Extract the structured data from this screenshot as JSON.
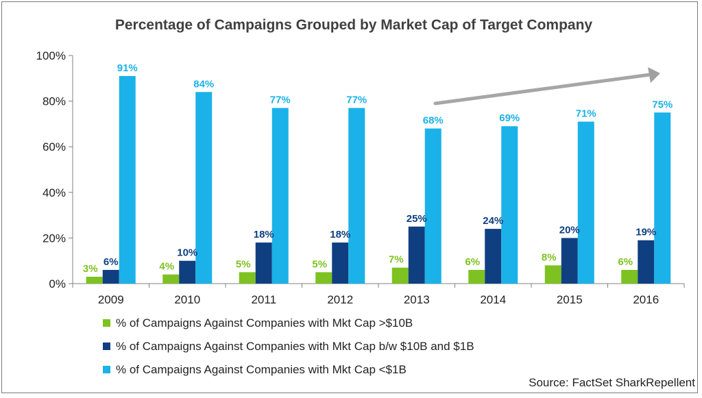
{
  "chart_data": {
    "type": "bar",
    "title": "Percentage of Campaigns Grouped by Market Cap of Target Company",
    "categories": [
      "2009",
      "2010",
      "2011",
      "2012",
      "2013",
      "2014",
      "2015",
      "2016"
    ],
    "series": [
      {
        "name": "% of Campaigns Against Companies with Mkt Cap >$10B",
        "color": "#7dc221",
        "values": [
          3,
          4,
          5,
          5,
          7,
          6,
          8,
          6
        ],
        "labels": [
          "3%",
          "4%",
          "5%",
          "5%",
          "7%",
          "6%",
          "8%",
          "6%"
        ]
      },
      {
        "name": "% of Campaigns Against Companies with Mkt Cap b/w $10B and $1B",
        "color": "#0f3f80",
        "values": [
          6,
          10,
          18,
          18,
          25,
          24,
          20,
          19
        ],
        "labels": [
          "6%",
          "10%",
          "18%",
          "18%",
          "25%",
          "24%",
          "20%",
          "19%"
        ]
      },
      {
        "name": "% of Campaigns Against Companies with Mkt Cap <$1B",
        "color": "#1ab2e8",
        "values": [
          91,
          84,
          77,
          77,
          68,
          69,
          71,
          75
        ],
        "labels": [
          "91%",
          "84%",
          "77%",
          "77%",
          "68%",
          "69%",
          "71%",
          "75%"
        ]
      }
    ],
    "ylim": [
      0,
      100
    ],
    "yticks": [
      0,
      20,
      40,
      60,
      80,
      100
    ],
    "ytick_labels": [
      "0%",
      "20%",
      "40%",
      "60%",
      "80%",
      "100%"
    ],
    "xlabel": "",
    "ylabel": "",
    "grid": false,
    "legend_position": "bottom-left",
    "annotation": "upward trend arrow over <$1B series from 2013 to 2016",
    "source": "Source: FactSet SharkRepellent"
  }
}
